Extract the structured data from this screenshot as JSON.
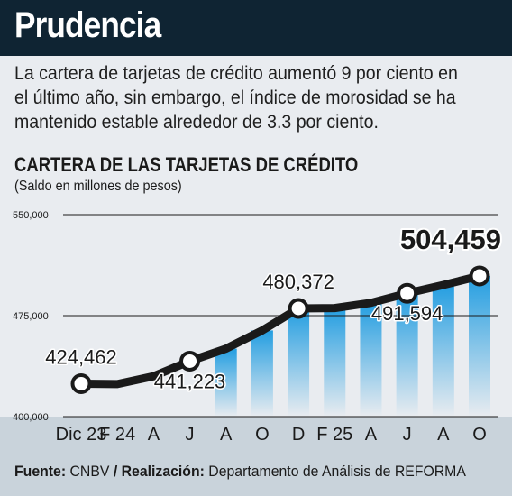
{
  "header": {
    "title": "Prudencia",
    "lede": "La cartera de tarjetas de crédito aumentó 9 por ciento en el último año, sin embargo, el índice de morosidad se ha mantenido estable alrededor de 3.3 por ciento."
  },
  "colors": {
    "header_bg": "#0f2433",
    "page_bg": "#e9ecf0",
    "line": "#1a1a1a",
    "area_blue": "#1a9ae0",
    "axis_band": "#c9d3db"
  },
  "chart_data": {
    "type": "line",
    "title": "CARTERA DE LAS TARJETAS DE CRÉDITO",
    "subtitle": "(Saldo en millones de pesos)",
    "ylim": [
      400000,
      550000
    ],
    "yticks": [
      {
        "value": 550000,
        "label": "550,000"
      },
      {
        "value": 475000,
        "label": "475,000"
      },
      {
        "value": 400000,
        "label": "400,000"
      }
    ],
    "categories": [
      "Dic 23",
      "F 24",
      "A",
      "J",
      "A",
      "O",
      "D",
      "F 25",
      "A",
      "J",
      "A",
      "O"
    ],
    "series": [
      {
        "values": [
          424462,
          424200,
          430000,
          441223,
          450500,
          464000,
          480372,
          480600,
          484500,
          491594,
          497800,
          504459
        ]
      }
    ],
    "labeled_points": [
      {
        "index": 0,
        "label": "424,462",
        "position": "above"
      },
      {
        "index": 3,
        "label": "441,223",
        "position": "below"
      },
      {
        "index": 6,
        "label": "480,372",
        "position": "above"
      },
      {
        "index": 9,
        "label": "491,594",
        "position": "below"
      },
      {
        "index": 11,
        "label": "504,459",
        "position": "above",
        "emphasis": true
      }
    ],
    "bars_from_index": 3,
    "grid": true
  },
  "footer": {
    "source_label": "Fuente:",
    "source_value": "CNBV",
    "separator": "/",
    "credit_label": "Realización:",
    "credit_value": "Departamento de Análisis de REFORMA"
  }
}
